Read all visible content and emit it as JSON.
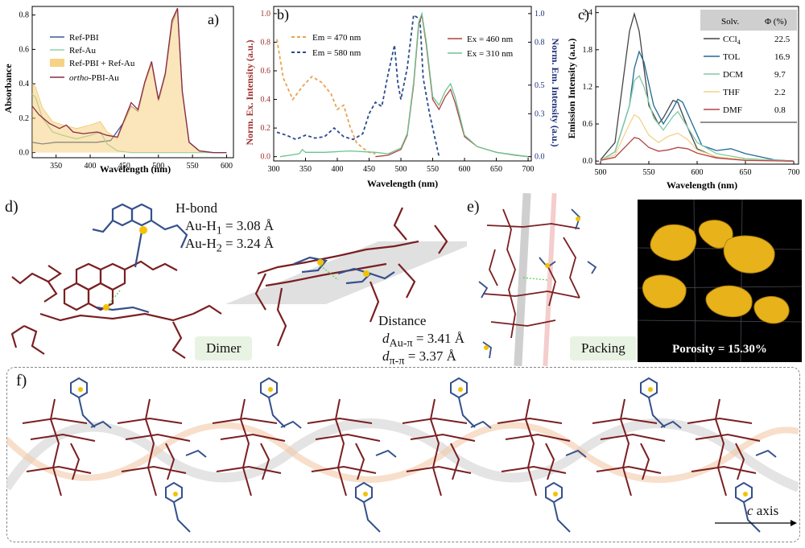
{
  "panels": {
    "a": {
      "label": "a)",
      "ylabel": "Absorbance",
      "xlabel": "Wavelength (nm)",
      "xticks": [
        "350",
        "400",
        "450",
        "500",
        "550",
        "600"
      ],
      "yticks": [
        "0.0",
        "0.2",
        "0.4",
        "0.6",
        "0.8"
      ],
      "legend": [
        "Ref-PBI",
        "Ref-Au",
        "Ref-PBI + Ref-Au",
        "ortho-PBI-Au"
      ],
      "legend_italic_prefix": "ortho",
      "legend_rest": "-PBI-Au"
    },
    "b": {
      "label": "b)",
      "ylabel_left": "Norm. Ex. Intensity (a.u.)",
      "ylabel_right": "Norm. Em. Intensity (a.u.)",
      "xlabel": "Wavelength (nm)",
      "xticks": [
        "300",
        "350",
        "400",
        "450",
        "500",
        "550",
        "600",
        "650",
        "700"
      ],
      "yticks_left": [
        "0.0",
        "0.2",
        "0.4",
        "0.6",
        "0.8",
        "1.0"
      ],
      "yticks_right": [
        "0.0",
        "0.3",
        "0.5",
        "0.8",
        "1.0"
      ],
      "legend_left": [
        "Em = 470 nm",
        "Em = 580 nm"
      ],
      "legend_right": [
        "Ex = 460 nm",
        "Ex = 310 nm"
      ]
    },
    "c": {
      "label": "c)",
      "ylabel": "Emission Intensity (a.u.)",
      "xlabel": "Wavelength (nm)",
      "xticks": [
        "500",
        "550",
        "600",
        "650",
        "700"
      ],
      "yticks": [
        "0.0",
        "0.6",
        "1.2",
        "1.8",
        "2.4"
      ],
      "table_headers": [
        "Solv.",
        "Φ (%)"
      ],
      "table_rows": [
        {
          "solv": "CCl",
          "sub": "4",
          "phi": "22.5"
        },
        {
          "solv": "TOL",
          "sub": "",
          "phi": "16.9"
        },
        {
          "solv": "DCM",
          "sub": "",
          "phi": "9.7"
        },
        {
          "solv": "THF",
          "sub": "",
          "phi": "2.2"
        },
        {
          "solv": "DMF",
          "sub": "",
          "phi": "0.8"
        }
      ]
    },
    "d": {
      "label": "d)",
      "hbond_title": "H-bond",
      "hbond1": {
        "pre": "Au-H",
        "sub": "1",
        "post": " = 3.08 Å"
      },
      "hbond2": {
        "pre": "Au-H",
        "sub": "2",
        "post": " = 3.24 Å"
      },
      "distance_title": "Distance",
      "dist1": {
        "pre": "d",
        "sub": "Au-π",
        "post": " = 3.41 Å"
      },
      "dist2": {
        "pre": "d",
        "sub": "π-π",
        "post": " = 3.37 Å"
      },
      "tag": "Dimer"
    },
    "e": {
      "label": "e)",
      "tag": "Packing",
      "porosity": "Porosity = 15.30%"
    },
    "f": {
      "label": "f)",
      "axis_label_italic": "c",
      "axis_label_rest": " axis"
    }
  },
  "colors": {
    "ref_pbi": "#3a5a9a",
    "ref_au": "#8fd3a8",
    "sum": "#f3c766",
    "ortho": "#8c2a44",
    "em470": "#e9a450",
    "em580": "#2b4b8c",
    "ex460": "#b04040",
    "ex310": "#6cc48f",
    "pbi_mol": "#7a1f22",
    "au_mol": "#34508c",
    "gold": "#f2c200"
  },
  "chart_data": [
    {
      "type": "line",
      "panel": "a",
      "xlabel": "Wavelength (nm)",
      "ylabel": "Absorbance",
      "xlim": [
        315,
        610
      ],
      "ylim": [
        -0.03,
        0.85
      ],
      "series": [
        {
          "name": "Ref-PBI",
          "x": [
            315,
            330,
            350,
            370,
            390,
            410,
            430,
            450,
            460,
            470,
            480,
            490,
            500,
            510,
            520,
            528,
            535,
            545,
            560,
            580,
            600
          ],
          "y": [
            0.06,
            0.05,
            0.06,
            0.06,
            0.06,
            0.06,
            0.07,
            0.18,
            0.27,
            0.24,
            0.4,
            0.52,
            0.3,
            0.45,
            0.75,
            0.83,
            0.35,
            0.06,
            0.01,
            0.0,
            0.0
          ]
        },
        {
          "name": "Ref-Au",
          "x": [
            315,
            320,
            330,
            345,
            360,
            380,
            400,
            415,
            425,
            440,
            460,
            500,
            550,
            600
          ],
          "y": [
            0.34,
            0.32,
            0.2,
            0.12,
            0.1,
            0.08,
            0.1,
            0.12,
            0.05,
            0.01,
            0.0,
            0.0,
            0.0,
            0.0
          ]
        },
        {
          "name": "Ref-PBI + Ref-Au",
          "x": [
            315,
            320,
            330,
            345,
            360,
            380,
            400,
            415,
            425,
            440,
            450,
            460,
            470,
            480,
            490,
            500,
            510,
            520,
            528,
            535,
            545,
            560,
            580,
            600
          ],
          "y": [
            0.4,
            0.38,
            0.26,
            0.18,
            0.16,
            0.14,
            0.16,
            0.18,
            0.12,
            0.08,
            0.18,
            0.27,
            0.24,
            0.4,
            0.52,
            0.3,
            0.45,
            0.75,
            0.83,
            0.35,
            0.06,
            0.01,
            0.0,
            0.0
          ]
        },
        {
          "name": "ortho-PBI-Au",
          "x": [
            315,
            325,
            340,
            355,
            365,
            375,
            390,
            410,
            425,
            440,
            450,
            460,
            470,
            480,
            490,
            500,
            510,
            520,
            528,
            535,
            545,
            560,
            580,
            600
          ],
          "y": [
            0.27,
            0.22,
            0.17,
            0.14,
            0.16,
            0.12,
            0.11,
            0.12,
            0.1,
            0.09,
            0.19,
            0.29,
            0.25,
            0.41,
            0.53,
            0.31,
            0.46,
            0.77,
            0.84,
            0.36,
            0.06,
            0.01,
            0.0,
            0.0
          ]
        }
      ]
    },
    {
      "type": "line",
      "panel": "b",
      "xlabel": "Wavelength (nm)",
      "ylabel": "Norm. Ex. Intensity (a.u.)",
      "ylabel_right": "Norm. Em. Intensity (a.u.)",
      "xlim": [
        300,
        705
      ],
      "ylim": [
        -0.03,
        1.05
      ],
      "series": [
        {
          "name": "Em = 470 nm",
          "axis": "left",
          "x": [
            305,
            315,
            330,
            345,
            360,
            375,
            390,
            400,
            410,
            420,
            430,
            440,
            450,
            460
          ],
          "y": [
            0.82,
            0.55,
            0.4,
            0.49,
            0.56,
            0.52,
            0.44,
            0.33,
            0.36,
            0.21,
            0.1,
            0.06,
            0.03,
            0.02
          ]
        },
        {
          "name": "Em = 580 nm",
          "axis": "left",
          "x": [
            305,
            320,
            335,
            350,
            365,
            380,
            395,
            410,
            425,
            440,
            450,
            460,
            470,
            480,
            490,
            495,
            500,
            510,
            520,
            530,
            535,
            545,
            560
          ],
          "y": [
            0.17,
            0.15,
            0.12,
            0.15,
            0.13,
            0.14,
            0.2,
            0.14,
            0.12,
            0.16,
            0.3,
            0.38,
            0.35,
            0.58,
            0.78,
            0.52,
            0.4,
            0.62,
            0.99,
            0.96,
            0.55,
            0.3,
            0.0
          ]
        },
        {
          "name": "Ex = 460 nm",
          "axis": "right",
          "x": [
            460,
            480,
            500,
            510,
            520,
            528,
            533,
            540,
            550,
            560,
            570,
            578,
            585,
            600,
            620,
            650,
            680,
            700
          ],
          "y": [
            0.0,
            0.01,
            0.05,
            0.15,
            0.5,
            0.92,
            0.99,
            0.78,
            0.4,
            0.33,
            0.42,
            0.47,
            0.38,
            0.14,
            0.07,
            0.03,
            0.01,
            0.0
          ]
        },
        {
          "name": "Ex = 310 nm",
          "axis": "right",
          "x": [
            310,
            340,
            345,
            350,
            380,
            420,
            460,
            480,
            500,
            510,
            520,
            528,
            533,
            540,
            550,
            560,
            570,
            578,
            585,
            600,
            620,
            650,
            700
          ],
          "y": [
            0.0,
            0.02,
            0.05,
            0.03,
            0.03,
            0.04,
            0.03,
            0.02,
            0.06,
            0.16,
            0.52,
            0.94,
            1.0,
            0.8,
            0.42,
            0.36,
            0.46,
            0.51,
            0.42,
            0.15,
            0.07,
            0.03,
            0.0
          ]
        }
      ]
    },
    {
      "type": "line",
      "panel": "c",
      "xlabel": "Wavelength (nm)",
      "ylabel": "Emission Intensity (a.u.)",
      "xlim": [
        495,
        705
      ],
      "ylim": [
        -0.05,
        2.5
      ],
      "series": [
        {
          "name": "CCl4",
          "x": [
            500,
            515,
            525,
            530,
            535,
            540,
            550,
            560,
            565,
            575,
            580,
            590,
            600,
            620,
            650,
            700
          ],
          "y": [
            0.02,
            0.3,
            1.5,
            2.1,
            2.38,
            2.1,
            0.9,
            0.6,
            0.7,
            0.98,
            0.95,
            0.55,
            0.2,
            0.06,
            0.02,
            0.0
          ]
        },
        {
          "name": "TOL",
          "x": [
            500,
            515,
            530,
            535,
            540,
            545,
            555,
            565,
            575,
            580,
            585,
            595,
            605,
            620,
            635,
            650,
            680,
            700
          ],
          "y": [
            0.01,
            0.15,
            0.9,
            1.5,
            1.77,
            1.6,
            0.9,
            0.6,
            0.85,
            1.0,
            0.95,
            0.6,
            0.25,
            0.17,
            0.2,
            0.12,
            0.02,
            0.0
          ]
        },
        {
          "name": "DCM",
          "x": [
            500,
            515,
            530,
            535,
            540,
            545,
            555,
            565,
            575,
            580,
            590,
            600,
            620,
            650,
            700
          ],
          "y": [
            0.01,
            0.15,
            0.9,
            1.3,
            1.38,
            1.2,
            0.7,
            0.5,
            0.72,
            0.8,
            0.55,
            0.3,
            0.12,
            0.04,
            0.0
          ]
        },
        {
          "name": "THF",
          "x": [
            500,
            515,
            530,
            535,
            540,
            550,
            560,
            570,
            580,
            590,
            600,
            620,
            650,
            700
          ],
          "y": [
            0.01,
            0.1,
            0.6,
            0.75,
            0.7,
            0.42,
            0.3,
            0.4,
            0.45,
            0.35,
            0.18,
            0.07,
            0.02,
            0.0
          ]
        },
        {
          "name": "DMF",
          "x": [
            500,
            515,
            530,
            535,
            540,
            550,
            560,
            570,
            580,
            590,
            600,
            620,
            650,
            700
          ],
          "y": [
            0.01,
            0.06,
            0.3,
            0.38,
            0.36,
            0.22,
            0.16,
            0.18,
            0.22,
            0.2,
            0.13,
            0.05,
            0.01,
            0.0
          ]
        }
      ]
    }
  ]
}
